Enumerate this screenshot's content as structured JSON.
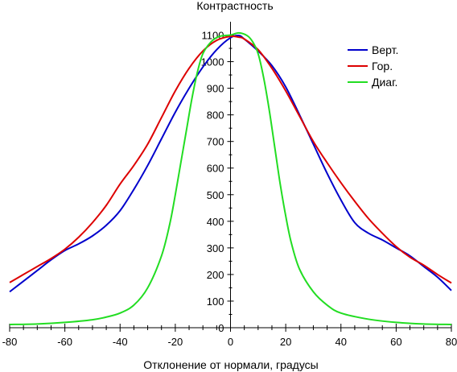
{
  "chart_data": {
    "type": "line",
    "title": "Контрастность",
    "xlabel": "Отклонение от нормали, градусы",
    "ylabel": "",
    "xlim": [
      -80,
      80
    ],
    "ylim": [
      0,
      1150
    ],
    "x_ticks": [
      -80,
      -60,
      -40,
      -20,
      0,
      20,
      40,
      60,
      80
    ],
    "y_ticks": [
      0,
      100,
      200,
      300,
      400,
      500,
      600,
      700,
      800,
      900,
      1000,
      1100
    ],
    "grid": false,
    "legend_position": "top-right",
    "series": [
      {
        "name": "Верт.",
        "color": "#0000cc",
        "points": [
          [
            -80,
            135
          ],
          [
            -75,
            175
          ],
          [
            -70,
            215
          ],
          [
            -65,
            255
          ],
          [
            -60,
            290
          ],
          [
            -55,
            315
          ],
          [
            -50,
            345
          ],
          [
            -45,
            385
          ],
          [
            -40,
            440
          ],
          [
            -35,
            520
          ],
          [
            -30,
            610
          ],
          [
            -25,
            710
          ],
          [
            -20,
            810
          ],
          [
            -15,
            900
          ],
          [
            -10,
            980
          ],
          [
            -5,
            1045
          ],
          [
            0,
            1090
          ],
          [
            3,
            1098
          ],
          [
            5,
            1085
          ],
          [
            10,
            1040
          ],
          [
            15,
            985
          ],
          [
            20,
            905
          ],
          [
            25,
            800
          ],
          [
            30,
            690
          ],
          [
            35,
            580
          ],
          [
            40,
            480
          ],
          [
            45,
            395
          ],
          [
            50,
            355
          ],
          [
            55,
            330
          ],
          [
            60,
            300
          ],
          [
            65,
            270
          ],
          [
            70,
            230
          ],
          [
            75,
            190
          ],
          [
            80,
            140
          ]
        ]
      },
      {
        "name": "Гор.",
        "color": "#dd0000",
        "points": [
          [
            -80,
            170
          ],
          [
            -75,
            200
          ],
          [
            -70,
            230
          ],
          [
            -65,
            260
          ],
          [
            -60,
            295
          ],
          [
            -55,
            340
          ],
          [
            -50,
            395
          ],
          [
            -45,
            460
          ],
          [
            -40,
            540
          ],
          [
            -35,
            610
          ],
          [
            -30,
            690
          ],
          [
            -25,
            790
          ],
          [
            -20,
            890
          ],
          [
            -15,
            975
          ],
          [
            -10,
            1040
          ],
          [
            -5,
            1080
          ],
          [
            0,
            1095
          ],
          [
            3,
            1092
          ],
          [
            5,
            1085
          ],
          [
            10,
            1045
          ],
          [
            15,
            975
          ],
          [
            20,
            890
          ],
          [
            25,
            795
          ],
          [
            30,
            700
          ],
          [
            35,
            620
          ],
          [
            40,
            545
          ],
          [
            45,
            475
          ],
          [
            50,
            410
          ],
          [
            55,
            355
          ],
          [
            60,
            305
          ],
          [
            65,
            265
          ],
          [
            70,
            235
          ],
          [
            75,
            200
          ],
          [
            80,
            168
          ]
        ]
      },
      {
        "name": "Диаг.",
        "color": "#22dd22",
        "points": [
          [
            -80,
            12
          ],
          [
            -70,
            14
          ],
          [
            -60,
            20
          ],
          [
            -50,
            30
          ],
          [
            -45,
            40
          ],
          [
            -40,
            55
          ],
          [
            -35,
            85
          ],
          [
            -30,
            150
          ],
          [
            -25,
            270
          ],
          [
            -22,
            390
          ],
          [
            -20,
            500
          ],
          [
            -18,
            620
          ],
          [
            -16,
            740
          ],
          [
            -14,
            860
          ],
          [
            -12,
            960
          ],
          [
            -10,
            1030
          ],
          [
            -7,
            1075
          ],
          [
            -4,
            1095
          ],
          [
            0,
            1100
          ],
          [
            3,
            1108
          ],
          [
            6,
            1098
          ],
          [
            8,
            1075
          ],
          [
            10,
            1030
          ],
          [
            12,
            940
          ],
          [
            14,
            820
          ],
          [
            16,
            680
          ],
          [
            18,
            540
          ],
          [
            20,
            420
          ],
          [
            22,
            320
          ],
          [
            25,
            220
          ],
          [
            30,
            135
          ],
          [
            35,
            85
          ],
          [
            40,
            55
          ],
          [
            50,
            32
          ],
          [
            60,
            20
          ],
          [
            70,
            14
          ],
          [
            80,
            12
          ]
        ]
      }
    ]
  }
}
